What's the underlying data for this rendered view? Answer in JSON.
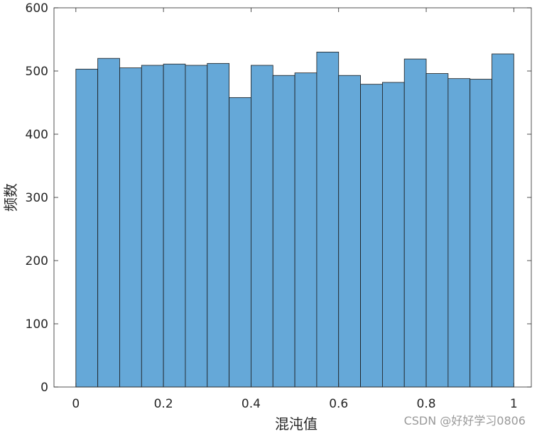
{
  "chart_data": {
    "type": "histogram",
    "bins": [
      0,
      0.05,
      0.1,
      0.15,
      0.2,
      0.25,
      0.3,
      0.35,
      0.4,
      0.45,
      0.5,
      0.55,
      0.6,
      0.65,
      0.7,
      0.75,
      0.8,
      0.85,
      0.9,
      0.95,
      1
    ],
    "values": [
      503,
      520,
      505,
      509,
      511,
      509,
      512,
      458,
      509,
      493,
      497,
      530,
      493,
      479,
      482,
      519,
      496,
      488,
      487,
      527
    ],
    "color": "#65a8d8",
    "xlabel": "混沌值",
    "ylabel": "频数",
    "xlim": [
      -0.05,
      1.04
    ],
    "ylim": [
      0,
      600
    ],
    "xticks": [
      0,
      0.2,
      0.4,
      0.6,
      0.8,
      1
    ],
    "yticks": [
      0,
      100,
      200,
      300,
      400,
      500,
      600
    ],
    "watermark": "CSDN @好好学习0806"
  }
}
